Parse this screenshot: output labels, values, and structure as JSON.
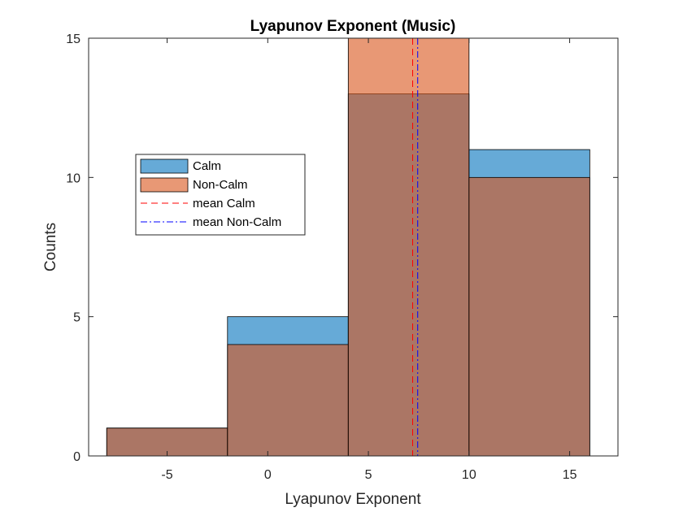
{
  "chart_data": {
    "type": "bar",
    "title": "Lyapunov Exponent (Music)",
    "xlabel": "Lyapunov Exponent",
    "ylabel": "Counts",
    "xlim": [
      -8.9,
      17.4
    ],
    "ylim": [
      0,
      15
    ],
    "xticks": [
      -5,
      0,
      5,
      10,
      15
    ],
    "yticks": [
      0,
      5,
      10,
      15
    ],
    "bin_edges": [
      -8,
      -2,
      4,
      10,
      16
    ],
    "series": [
      {
        "name": "Calm",
        "values": [
          1,
          5,
          13,
          11
        ],
        "color": "#0072BD"
      },
      {
        "name": "Non-Calm",
        "values": [
          1,
          4,
          15,
          10
        ],
        "color": "#D95319"
      }
    ],
    "mean_lines": [
      {
        "name": "mean Calm",
        "x": 7.2,
        "color": "#ff0000",
        "style": "dashed"
      },
      {
        "name": "mean Non-Calm",
        "x": 7.45,
        "color": "#0000ff",
        "style": "dashdot"
      }
    ],
    "legend_position": "left-middle",
    "grid": false
  }
}
